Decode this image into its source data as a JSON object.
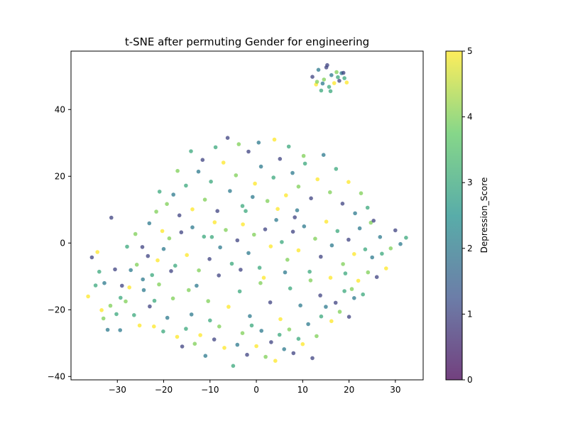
{
  "chart_data": {
    "type": "scatter",
    "title": "t-SNE after permuting Gender for engineering",
    "xlabel": "",
    "ylabel": "",
    "xlim": [
      -40,
      36
    ],
    "ylim": [
      -41,
      57.5
    ],
    "xticks": [
      -30,
      -20,
      -10,
      0,
      10,
      20,
      30
    ],
    "yticks": [
      -40,
      -20,
      0,
      20,
      40
    ],
    "grid": false,
    "legend": "none",
    "colorbar": {
      "label": "Depression_Score",
      "range": [
        0,
        5
      ],
      "ticks": [
        0,
        1,
        2,
        3,
        4,
        5
      ],
      "colormap": "viridis",
      "stops": [
        "#440154",
        "#3b528b",
        "#21918c",
        "#5ec962",
        "#fde725"
      ],
      "alpha": 0.75
    },
    "point_style": {
      "marker": "circle",
      "alpha": 0.75
    },
    "points": [
      [
        -35.5,
        -4.3,
        1
      ],
      [
        -34.3,
        -2.7,
        5
      ],
      [
        -36.3,
        -16.0,
        5
      ],
      [
        -33.9,
        -8.6,
        3
      ],
      [
        -32.8,
        -12.0,
        2
      ],
      [
        -31.5,
        -18.8,
        4
      ],
      [
        -30.2,
        -21.3,
        3
      ],
      [
        -29.0,
        -12.8,
        1
      ],
      [
        -28.2,
        -17.5,
        4
      ],
      [
        -27.1,
        -8.1,
        2
      ],
      [
        -26.4,
        -21.6,
        3
      ],
      [
        -25.2,
        -24.7,
        5
      ],
      [
        -24.3,
        -14.1,
        2
      ],
      [
        -23.0,
        -19.0,
        1
      ],
      [
        -22.1,
        -25.0,
        5
      ],
      [
        -21.0,
        -12.4,
        4
      ],
      [
        -20.1,
        -26.5,
        3
      ],
      [
        -19.2,
        -22.4,
        2
      ],
      [
        -18.0,
        -16.6,
        4
      ],
      [
        -17.1,
        -28.1,
        5
      ],
      [
        -16.0,
        -31.0,
        1
      ],
      [
        -15.2,
        -25.7,
        3
      ],
      [
        -14.0,
        -21.4,
        2
      ],
      [
        -13.3,
        -30.2,
        4
      ],
      [
        -12.1,
        -27.6,
        5
      ],
      [
        -11.0,
        -33.8,
        2
      ],
      [
        -10.0,
        -23.2,
        3
      ],
      [
        -9.1,
        -28.9,
        1
      ],
      [
        -8.0,
        -25.0,
        4
      ],
      [
        -6.9,
        -31.4,
        5
      ],
      [
        -5.0,
        -36.8,
        3
      ],
      [
        -4.1,
        -30.5,
        2
      ],
      [
        -3.0,
        -27.0,
        4
      ],
      [
        -2.0,
        -33.5,
        1
      ],
      [
        -1.0,
        -24.7,
        3
      ],
      [
        0.0,
        -30.9,
        5
      ],
      [
        1.1,
        -26.3,
        2
      ],
      [
        2.0,
        -34.1,
        4
      ],
      [
        3.2,
        -29.7,
        1
      ],
      [
        4.1,
        -35.3,
        5
      ],
      [
        5.0,
        -27.5,
        3
      ],
      [
        6.0,
        -31.8,
        2
      ],
      [
        7.1,
        -25.9,
        4
      ],
      [
        8.0,
        -33.0,
        1
      ],
      [
        9.1,
        -28.7,
        3
      ],
      [
        10.0,
        -30.3,
        5
      ],
      [
        11.2,
        -24.3,
        2
      ],
      [
        12.1,
        -34.5,
        1
      ],
      [
        13.0,
        -27.9,
        4
      ],
      [
        14.0,
        -22.0,
        3
      ],
      [
        15.0,
        -19.1,
        2
      ],
      [
        16.2,
        -23.4,
        5
      ],
      [
        17.1,
        -17.9,
        1
      ],
      [
        18.0,
        -20.6,
        4
      ],
      [
        19.0,
        -14.4,
        3
      ],
      [
        20.0,
        -22.1,
        1
      ],
      [
        21.1,
        -16.5,
        2
      ],
      [
        22.0,
        -11.3,
        5
      ],
      [
        23.0,
        -15.4,
        3
      ],
      [
        24.1,
        -8.8,
        4
      ],
      [
        25.0,
        -4.3,
        2
      ],
      [
        26.0,
        -10.2,
        1
      ],
      [
        27.1,
        -3.2,
        3
      ],
      [
        28.0,
        -7.6,
        5
      ],
      [
        29.0,
        -1.6,
        4
      ],
      [
        30.0,
        3.8,
        1
      ],
      [
        31.1,
        -0.3,
        2
      ],
      [
        32.3,
        1.6,
        3
      ],
      [
        -33.0,
        -22.6,
        4
      ],
      [
        -32.1,
        -26.0,
        2
      ],
      [
        -30.5,
        -7.9,
        1
      ],
      [
        -29.3,
        -16.4,
        3
      ],
      [
        -27.4,
        -13.3,
        5
      ],
      [
        -25.8,
        -6.5,
        4
      ],
      [
        -24.5,
        -10.9,
        2
      ],
      [
        -23.4,
        -3.9,
        1
      ],
      [
        -22.5,
        -9.6,
        3
      ],
      [
        -21.3,
        -5.2,
        5
      ],
      [
        -20.0,
        -1.8,
        2
      ],
      [
        -18.8,
        1.4,
        4
      ],
      [
        -17.5,
        -6.8,
        3
      ],
      [
        -16.2,
        3.2,
        1
      ],
      [
        -15.0,
        -3.6,
        5
      ],
      [
        -13.8,
        4.7,
        2
      ],
      [
        -12.4,
        -8.2,
        4
      ],
      [
        -11.3,
        1.9,
        3
      ],
      [
        -10.1,
        -4.8,
        1
      ],
      [
        -9.0,
        6.2,
        5
      ],
      [
        -7.8,
        -1.3,
        2
      ],
      [
        -6.6,
        3.9,
        4
      ],
      [
        -5.3,
        -6.2,
        3
      ],
      [
        -4.1,
        0.8,
        1
      ],
      [
        -2.9,
        5.6,
        5
      ],
      [
        -1.7,
        -3.0,
        2
      ],
      [
        -0.5,
        2.5,
        4
      ],
      [
        0.7,
        -7.4,
        3
      ],
      [
        1.9,
        4.1,
        1
      ],
      [
        3.1,
        -1.0,
        5
      ],
      [
        4.3,
        6.9,
        2
      ],
      [
        5.5,
        0.3,
        3
      ],
      [
        6.7,
        -5.0,
        4
      ],
      [
        7.9,
        3.4,
        1
      ],
      [
        9.1,
        -2.2,
        5
      ],
      [
        10.3,
        5.0,
        2
      ],
      [
        11.5,
        -8.6,
        3
      ],
      [
        12.7,
        1.3,
        4
      ],
      [
        13.9,
        -4.1,
        1
      ],
      [
        15.1,
        6.4,
        5
      ],
      [
        16.3,
        -0.7,
        2
      ],
      [
        17.5,
        3.6,
        3
      ],
      [
        18.7,
        -6.3,
        4
      ],
      [
        19.9,
        1.0,
        1
      ],
      [
        21.1,
        -3.3,
        5
      ],
      [
        22.3,
        4.4,
        2
      ],
      [
        23.5,
        -1.9,
        3
      ],
      [
        24.7,
        6.1,
        4
      ],
      [
        -19.3,
        11.7,
        4
      ],
      [
        -17.9,
        14.5,
        2
      ],
      [
        -16.6,
        8.3,
        1
      ],
      [
        -15.2,
        17.2,
        3
      ],
      [
        -13.8,
        10.1,
        5
      ],
      [
        -12.5,
        21.4,
        2
      ],
      [
        -11.1,
        13.0,
        4
      ],
      [
        -9.8,
        18.4,
        3
      ],
      [
        -8.4,
        9.6,
        1
      ],
      [
        -7.1,
        24.1,
        5
      ],
      [
        -5.7,
        15.6,
        2
      ],
      [
        -4.4,
        20.3,
        4
      ],
      [
        -3.0,
        11.1,
        3
      ],
      [
        -1.7,
        27.4,
        1
      ],
      [
        -0.3,
        17.8,
        5
      ],
      [
        1.0,
        22.9,
        2
      ],
      [
        2.4,
        12.6,
        4
      ],
      [
        3.7,
        19.6,
        3
      ],
      [
        5.1,
        25.2,
        1
      ],
      [
        6.4,
        14.3,
        5
      ],
      [
        7.8,
        21.0,
        2
      ],
      [
        9.1,
        16.9,
        4
      ],
      [
        10.5,
        23.8,
        3
      ],
      [
        11.8,
        13.4,
        1
      ],
      [
        13.2,
        19.1,
        5
      ],
      [
        14.5,
        26.4,
        2
      ],
      [
        15.9,
        15.2,
        4
      ],
      [
        17.2,
        22.2,
        3
      ],
      [
        18.6,
        11.8,
        1
      ],
      [
        19.9,
        18.3,
        5
      ],
      [
        21.3,
        8.9,
        2
      ],
      [
        22.6,
        14.9,
        4
      ],
      [
        24.0,
        10.6,
        3
      ],
      [
        25.3,
        6.7,
        1
      ],
      [
        -23.1,
        5.9,
        2
      ],
      [
        -21.6,
        9.4,
        4
      ],
      [
        -20.3,
        3.6,
        5
      ],
      [
        -8.8,
        28.7,
        3
      ],
      [
        -6.2,
        31.5,
        1
      ],
      [
        -3.8,
        29.6,
        4
      ],
      [
        0.5,
        30.1,
        2
      ],
      [
        3.9,
        31.0,
        5
      ],
      [
        7.0,
        28.9,
        3
      ],
      [
        10.2,
        26.1,
        4
      ],
      [
        -14.1,
        27.5,
        3
      ],
      [
        -11.6,
        24.9,
        1
      ],
      [
        -12.9,
        -12.8,
        2
      ],
      [
        -10.4,
        -17.4,
        4
      ],
      [
        -8.1,
        -9.7,
        1
      ],
      [
        -6.0,
        -19.1,
        5
      ],
      [
        -3.6,
        -14.5,
        3
      ],
      [
        -1.4,
        -21.9,
        2
      ],
      [
        0.9,
        -12.0,
        4
      ],
      [
        3.0,
        -17.8,
        1
      ],
      [
        5.2,
        -22.8,
        5
      ],
      [
        7.3,
        -13.6,
        3
      ],
      [
        9.5,
        -18.7,
        2
      ],
      [
        11.7,
        -11.2,
        4
      ],
      [
        13.8,
        -15.7,
        1
      ],
      [
        16.0,
        -10.4,
        5
      ],
      [
        -27.9,
        -1.1,
        3
      ],
      [
        -26.1,
        2.7,
        4
      ],
      [
        -24.6,
        -1.2,
        1
      ],
      [
        -31.3,
        7.6,
        1
      ],
      [
        -29.4,
        -26.1,
        2
      ],
      [
        -34.7,
        -12.7,
        3
      ],
      [
        -33.4,
        -20.1,
        5
      ],
      [
        12.1,
        49.8,
        1
      ],
      [
        12.9,
        47.5,
        5
      ],
      [
        13.4,
        51.9,
        2
      ],
      [
        14.0,
        45.7,
        3
      ],
      [
        14.6,
        49.0,
        4
      ],
      [
        15.1,
        52.6,
        1
      ],
      [
        15.7,
        46.8,
        3
      ],
      [
        16.2,
        50.3,
        2
      ],
      [
        16.8,
        47.9,
        5
      ],
      [
        17.3,
        51.2,
        4
      ],
      [
        17.9,
        48.6,
        1
      ],
      [
        18.4,
        50.9,
        2
      ],
      [
        19.0,
        49.4,
        3
      ],
      [
        19.5,
        48.1,
        5
      ],
      [
        15.3,
        53.3,
        1
      ],
      [
        13.1,
        48.3,
        4
      ],
      [
        16.0,
        45.5,
        3
      ],
      [
        14.3,
        47.8,
        2
      ],
      [
        17.6,
        49.7,
        3
      ],
      [
        18.8,
        51.0,
        1
      ],
      [
        -2.3,
        9.6,
        3
      ],
      [
        -0.8,
        13.8,
        2
      ],
      [
        4.6,
        10.2,
        5
      ],
      [
        8.3,
        7.7,
        1
      ],
      [
        -9.6,
        1.8,
        3
      ],
      [
        -14.6,
        -14.1,
        4
      ],
      [
        19.2,
        -9.1,
        3
      ],
      [
        20.6,
        -13.8,
        4
      ],
      [
        26.7,
        1.8,
        2
      ],
      [
        -22.0,
        -17.3,
        3
      ],
      [
        -18.4,
        -8.4,
        1
      ],
      [
        -20.9,
        15.4,
        3
      ],
      [
        -17.0,
        21.6,
        4
      ],
      [
        6.2,
        -8.8,
        2
      ],
      [
        1.6,
        -10.4,
        5
      ],
      [
        -3.4,
        -8.0,
        1
      ],
      [
        8.8,
        9.8,
        2
      ]
    ]
  }
}
